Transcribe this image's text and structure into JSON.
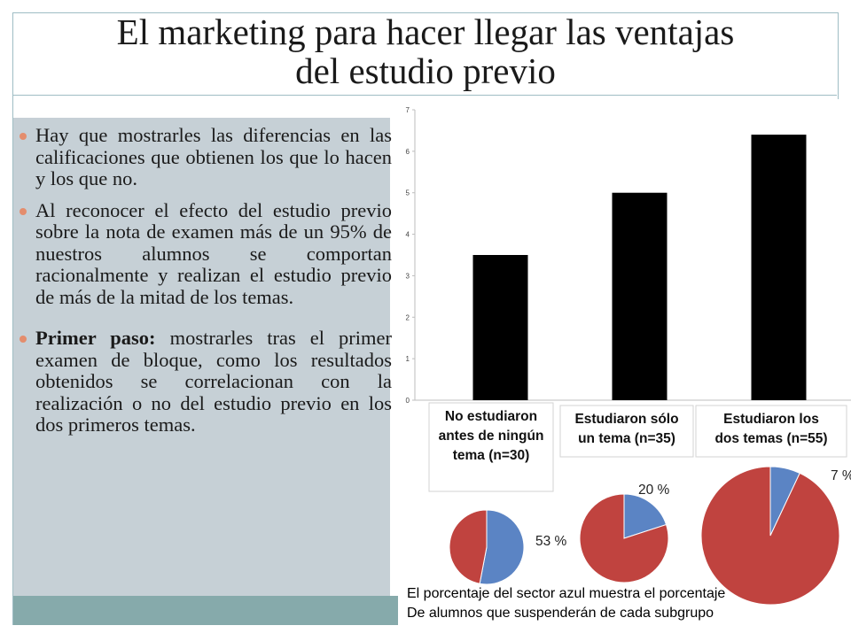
{
  "slide": {
    "title_line1": "El marketing para hacer llegar las ventajas",
    "title_line2": "del estudio previo"
  },
  "bullets": [
    {
      "bold": "",
      "text": "Hay que mostrarles las diferencias en las calificaciones que obtienen los que lo hacen y los que no."
    },
    {
      "bold": "",
      "text": " Al reconocer el efecto del estudio previo sobre la nota de examen más de un 95% de nuestros alumnos se comportan racionalmente y realizan el estudio previo de más de la mitad de los temas."
    },
    {
      "bold": "Primer paso:",
      "text": " mostrarles tras el primer examen de bloque, como los resultados obtenidos se correlacionan con la realización o no del estudio previo en los dos primeros temas."
    }
  ],
  "chart_data": [
    {
      "type": "bar",
      "categories": [
        [
          "No estudiaron",
          "antes de ningún",
          "tema  (n=30)"
        ],
        [
          "Estudiaron  sólo",
          "un tema (n=35)"
        ],
        [
          "Estudiaron los",
          "dos temas (n=55)"
        ]
      ],
      "values": [
        3.5,
        5.0,
        6.4
      ],
      "ylim": [
        0,
        7
      ],
      "yticks": [
        "0",
        "1",
        "2",
        "3",
        "4",
        "5",
        "6",
        "7"
      ],
      "title": "",
      "xlabel": "",
      "ylabel": "",
      "grid": false,
      "colors": {
        "bar": "#000000"
      }
    },
    {
      "type": "pie",
      "slices": [
        {
          "name": "azul",
          "value": 53,
          "color": "#5b84c4"
        },
        {
          "name": "rojo",
          "value": 47,
          "color": "#c0433f"
        }
      ],
      "label": "53 %"
    },
    {
      "type": "pie",
      "slices": [
        {
          "name": "azul",
          "value": 20,
          "color": "#5b84c4"
        },
        {
          "name": "rojo",
          "value": 80,
          "color": "#c0433f"
        }
      ],
      "label": "20 %"
    },
    {
      "type": "pie",
      "slices": [
        {
          "name": "azul",
          "value": 7,
          "color": "#5b84c4"
        },
        {
          "name": "rojo",
          "value": 93,
          "color": "#c0433f"
        }
      ],
      "label": "7 %"
    }
  ],
  "caption": {
    "line1": "El porcentaje del sector azul muestra el porcentaje",
    "line2": "De alumnos que suspenderán de cada subgrupo"
  },
  "colors": {
    "accent_bullet": "#e48d6d",
    "panel": "#c6d0d6",
    "footer_band": "#86aaab"
  }
}
